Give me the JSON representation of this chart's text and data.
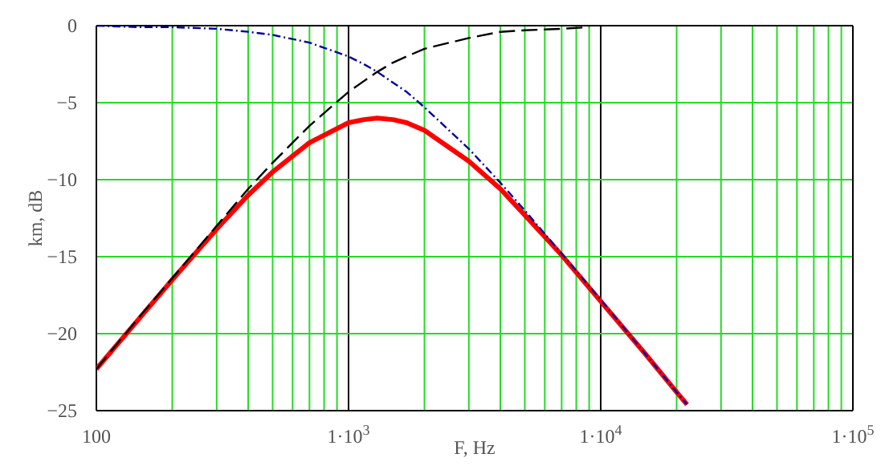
{
  "chart_data": {
    "type": "line",
    "xlabel": "F, Hz",
    "ylabel": "km, dB",
    "log": "x",
    "grid": true,
    "marker": "none",
    "xlim": [
      100,
      100000
    ],
    "xticks": [
      {
        "value": 100,
        "label": "100"
      },
      {
        "value": 200,
        "label": null
      },
      {
        "value": 300,
        "label": null
      },
      {
        "value": 400,
        "label": null
      },
      {
        "value": 500,
        "label": null
      },
      {
        "value": 600,
        "label": null
      },
      {
        "value": 700,
        "label": null
      },
      {
        "value": 800,
        "label": null
      },
      {
        "value": 900,
        "label": null
      },
      {
        "value": 1000,
        "label": "1·10$^{3}$"
      },
      {
        "value": 2000,
        "label": null
      },
      {
        "value": 3000,
        "label": null
      },
      {
        "value": 4000,
        "label": null
      },
      {
        "value": 5000,
        "label": null
      },
      {
        "value": 6000,
        "label": null
      },
      {
        "value": 7000,
        "label": null
      },
      {
        "value": 8000,
        "label": null
      },
      {
        "value": 9000,
        "label": null
      },
      {
        "value": 10000,
        "label": "1·10$^{4}$"
      },
      {
        "value": 20000,
        "label": null
      },
      {
        "value": 30000,
        "label": null
      },
      {
        "value": 40000,
        "label": null
      },
      {
        "value": 50000,
        "label": null
      },
      {
        "value": 60000,
        "label": null
      },
      {
        "value": 70000,
        "label": null
      },
      {
        "value": 80000,
        "label": null
      },
      {
        "value": 90000,
        "label": null
      },
      {
        "value": 100000,
        "label": "1·10$^{5}$"
      }
    ],
    "ylim": [
      -25,
      0
    ],
    "yticks": [
      -25,
      -20,
      -15,
      -10,
      -5,
      0
    ],
    "series": [
      {
        "color": "#ff0000",
        "line_style": "solid",
        "x": [
          100,
          150,
          200,
          300,
          400,
          500,
          700,
          1000,
          1150,
          1300,
          1500,
          1700,
          2000,
          3000,
          4000,
          5000,
          7000,
          10000,
          15000,
          20000,
          22000
        ],
        "values": [
          -22.3,
          -18.9,
          -16.5,
          -13.2,
          -11.0,
          -9.5,
          -7.6,
          -6.3,
          -6.1,
          -6.0,
          -6.1,
          -6.3,
          -6.8,
          -8.8,
          -10.6,
          -12.3,
          -14.9,
          -17.9,
          -21.3,
          -23.8,
          -24.6
        ]
      },
      {
        "color": "#000000",
        "line_style": "dashed",
        "x": [
          100,
          150,
          200,
          300,
          400,
          500,
          700,
          1000,
          1150,
          1300,
          1500,
          1700,
          2000,
          3000,
          4000,
          5000,
          7000,
          9000
        ],
        "values": [
          -22.3,
          -18.8,
          -16.4,
          -13.0,
          -10.6,
          -8.9,
          -6.5,
          -4.3,
          -3.6,
          -3.0,
          -2.4,
          -2.0,
          -1.5,
          -0.8,
          -0.4,
          -0.3,
          -0.2,
          -0.1
        ]
      },
      {
        "color": "#0000a0",
        "line_style": "dotted",
        "x": [
          100,
          150,
          200,
          300,
          400,
          500,
          700,
          1000,
          1150,
          1300,
          1500,
          1700,
          2000,
          3000,
          4000,
          5000,
          7000,
          10000,
          15000,
          20000,
          22000
        ],
        "values": [
          0,
          -0.1,
          -0.1,
          -0.2,
          -0.4,
          -0.6,
          -1.1,
          -2.0,
          -2.5,
          -3.0,
          -3.7,
          -4.3,
          -5.3,
          -8.0,
          -10.2,
          -12.0,
          -14.8,
          -17.8,
          -21.3,
          -23.8,
          -24.6
        ]
      }
    ]
  }
}
